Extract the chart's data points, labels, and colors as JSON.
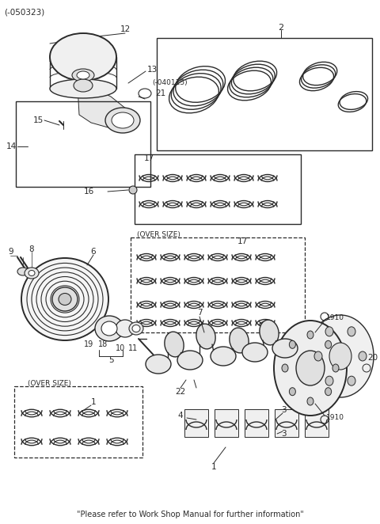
{
  "bg_color": "#ffffff",
  "fig_width": 4.8,
  "fig_height": 6.62,
  "dpi": 100,
  "title_code": "(-050323)",
  "footer_text": "\"Please refer to Work Shop Manual for further information\""
}
